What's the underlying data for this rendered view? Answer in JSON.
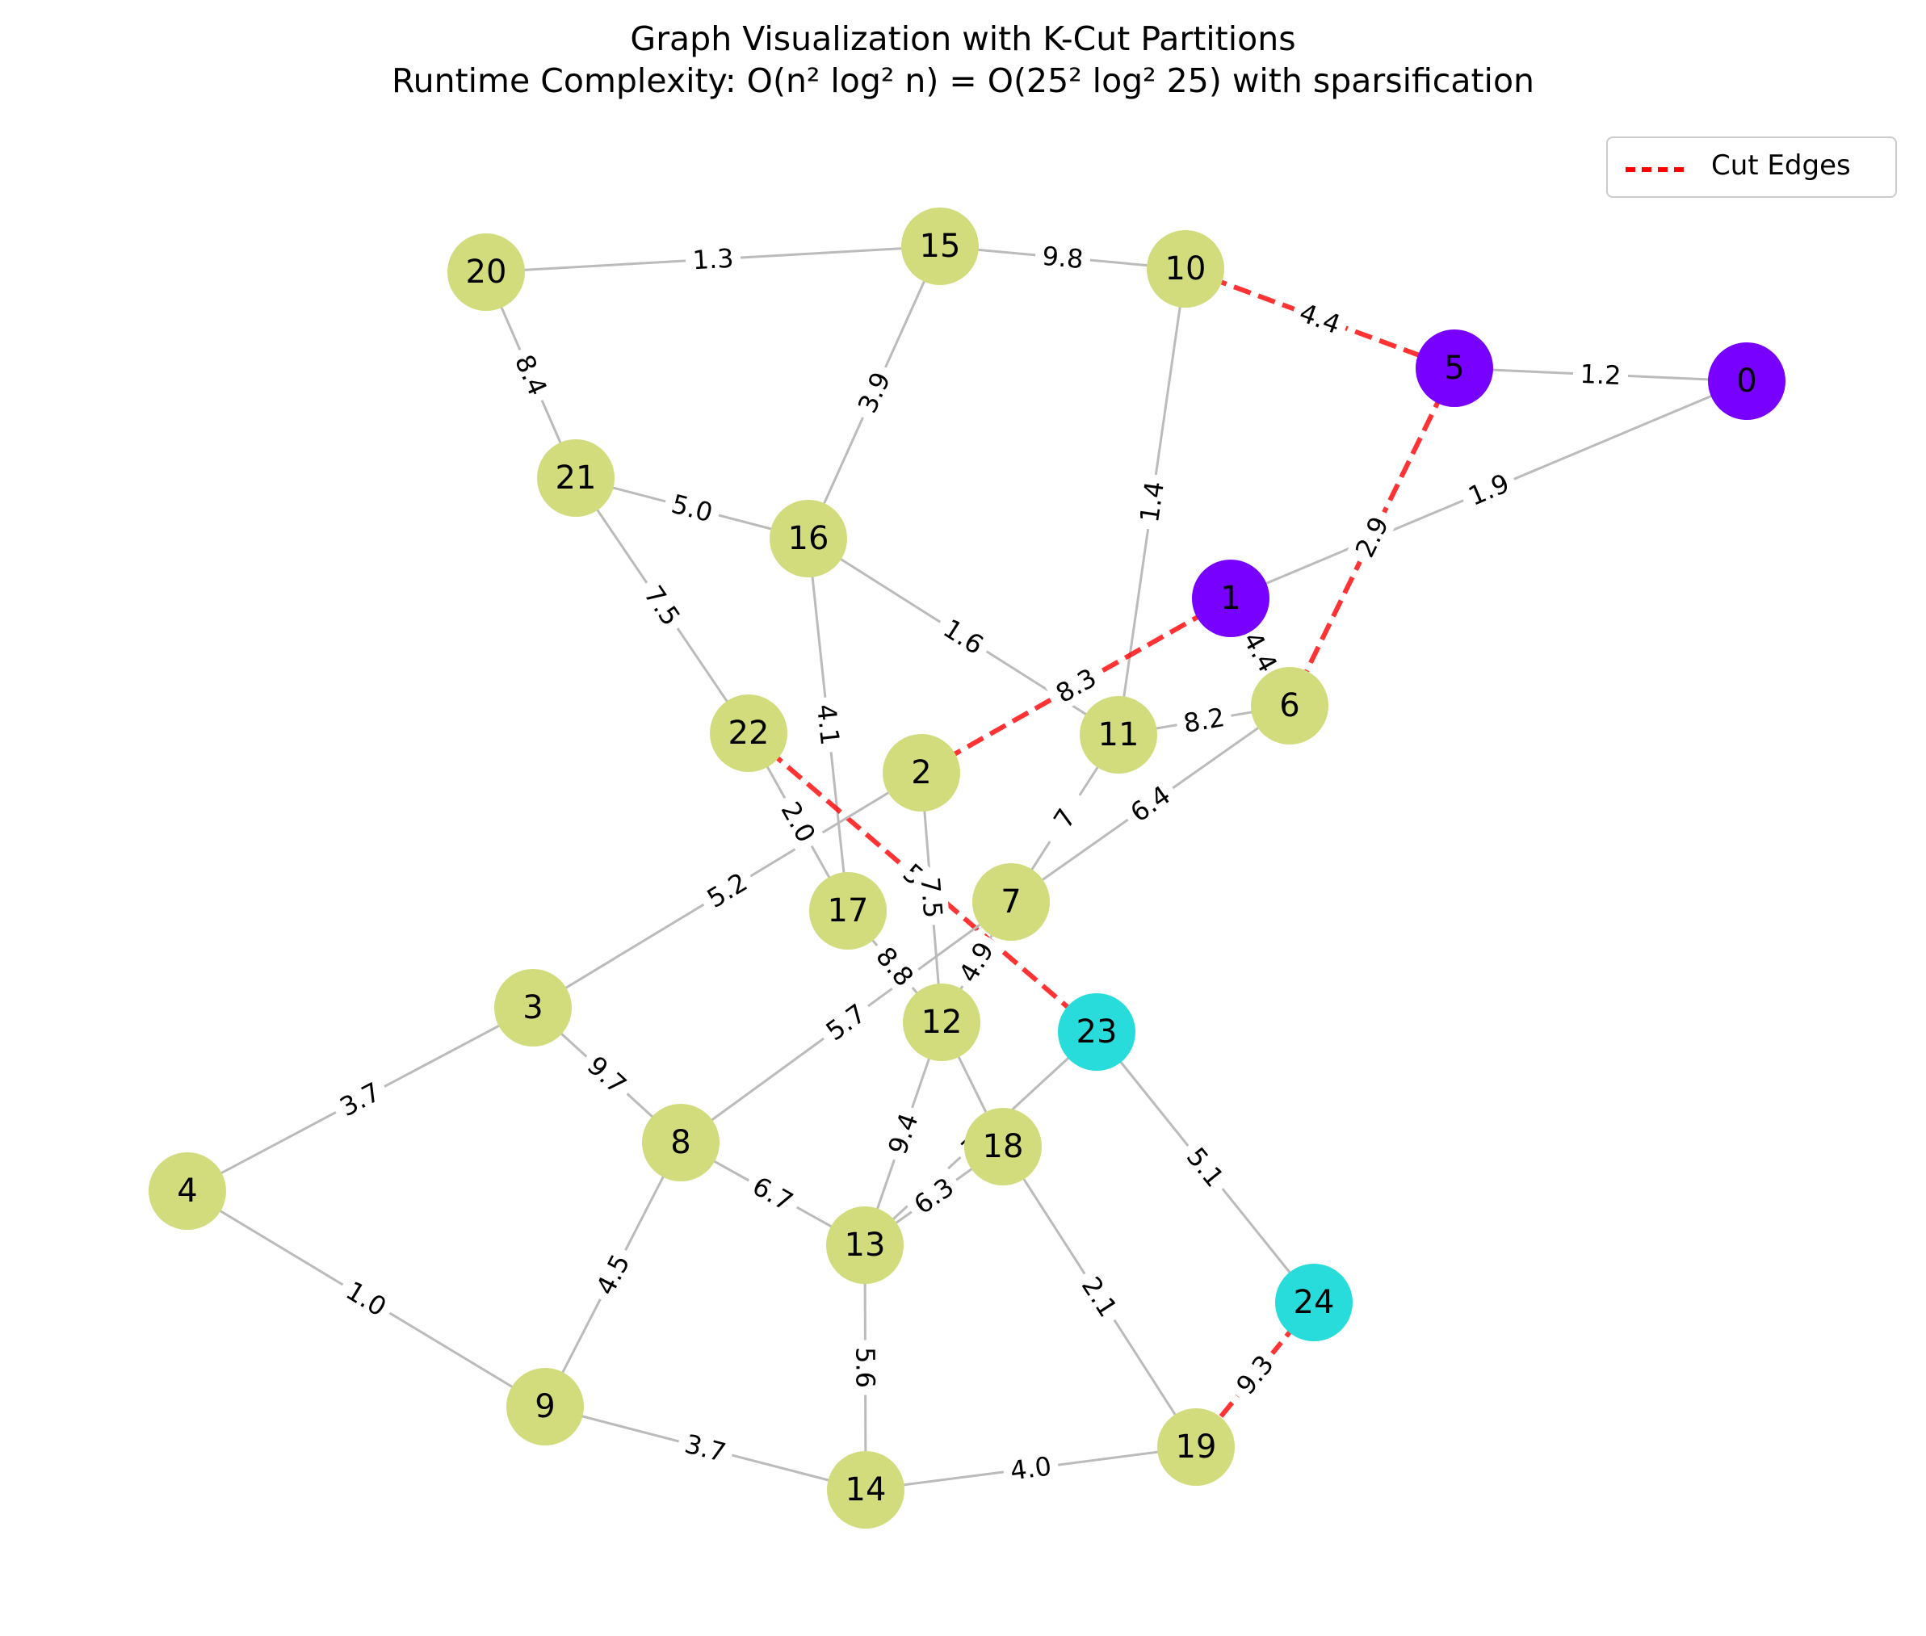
{
  "title": {
    "line1": "Graph Visualization with K-Cut Partitions",
    "line2": "Runtime Complexity: O(n² log² n) = O(25² log² 25) with sparsification"
  },
  "legend": {
    "label": "Cut Edges",
    "color": "#ff0000"
  },
  "colors": {
    "normal_edge": "#bbbbbb",
    "cut_edge": "#ff0000",
    "partition_purple": "#7700ff",
    "partition_green": "#d3dc7d",
    "partition_cyan": "#27dcdb"
  },
  "nodes": [
    {
      "id": "0",
      "partition": "purple"
    },
    {
      "id": "1",
      "partition": "purple"
    },
    {
      "id": "2",
      "partition": "green"
    },
    {
      "id": "3",
      "partition": "green"
    },
    {
      "id": "4",
      "partition": "green"
    },
    {
      "id": "5",
      "partition": "purple"
    },
    {
      "id": "6",
      "partition": "green"
    },
    {
      "id": "7",
      "partition": "green"
    },
    {
      "id": "8",
      "partition": "green"
    },
    {
      "id": "9",
      "partition": "green"
    },
    {
      "id": "10",
      "partition": "green"
    },
    {
      "id": "11",
      "partition": "green"
    },
    {
      "id": "12",
      "partition": "green"
    },
    {
      "id": "13",
      "partition": "green"
    },
    {
      "id": "14",
      "partition": "green"
    },
    {
      "id": "15",
      "partition": "green"
    },
    {
      "id": "16",
      "partition": "green"
    },
    {
      "id": "17",
      "partition": "green"
    },
    {
      "id": "18",
      "partition": "green"
    },
    {
      "id": "19",
      "partition": "green"
    },
    {
      "id": "20",
      "partition": "green"
    },
    {
      "id": "21",
      "partition": "green"
    },
    {
      "id": "22",
      "partition": "green"
    },
    {
      "id": "23",
      "partition": "cyan"
    },
    {
      "id": "24",
      "partition": "cyan"
    }
  ],
  "edges": [
    {
      "source": "20",
      "target": "15",
      "weight": "1.3",
      "cut": false
    },
    {
      "source": "15",
      "target": "10",
      "weight": "9.8",
      "cut": false
    },
    {
      "source": "10",
      "target": "5",
      "weight": "4.4",
      "cut": true
    },
    {
      "source": "5",
      "target": "0",
      "weight": "1.2",
      "cut": false
    },
    {
      "source": "0",
      "target": "1",
      "weight": "1.9",
      "cut": false
    },
    {
      "source": "5",
      "target": "6",
      "weight": "2.9",
      "cut": true
    },
    {
      "source": "20",
      "target": "21",
      "weight": "8.4",
      "cut": false
    },
    {
      "source": "15",
      "target": "16",
      "weight": "3.9",
      "cut": false
    },
    {
      "source": "21",
      "target": "16",
      "weight": "5.0",
      "cut": false
    },
    {
      "source": "10",
      "target": "11",
      "weight": "1.4",
      "cut": false
    },
    {
      "source": "21",
      "target": "22",
      "weight": "7.5",
      "cut": false
    },
    {
      "source": "16",
      "target": "11",
      "weight": "1.6",
      "cut": false
    },
    {
      "source": "16",
      "target": "17",
      "weight": "4.1",
      "cut": false
    },
    {
      "source": "1",
      "target": "2",
      "weight": "8.3",
      "cut": true
    },
    {
      "source": "1",
      "target": "6",
      "weight": "4.4",
      "cut": false
    },
    {
      "source": "11",
      "target": "6",
      "weight": "8.2",
      "cut": false
    },
    {
      "source": "6",
      "target": "7",
      "weight": "6.4",
      "cut": false
    },
    {
      "source": "11",
      "target": "7",
      "weight": "7",
      "cut": false
    },
    {
      "source": "22",
      "target": "17",
      "weight": "2.0",
      "cut": false
    },
    {
      "source": "22",
      "target": "23",
      "weight": "5.7",
      "cut": true
    },
    {
      "source": "2",
      "target": "12",
      "weight": "7.5",
      "cut": false
    },
    {
      "source": "2",
      "target": "3",
      "weight": "5.2",
      "cut": false
    },
    {
      "source": "17",
      "target": "12",
      "weight": "8.8",
      "cut": false
    },
    {
      "source": "7",
      "target": "8",
      "weight": "5.7",
      "cut": false
    },
    {
      "source": "7",
      "target": "12",
      "weight": "4.9",
      "cut": false
    },
    {
      "source": "3",
      "target": "4",
      "weight": "3.7",
      "cut": false
    },
    {
      "source": "3",
      "target": "8",
      "weight": "9.7",
      "cut": false
    },
    {
      "source": "12",
      "target": "13",
      "weight": "9.4",
      "cut": false
    },
    {
      "source": "12",
      "target": "18",
      "weight": "",
      "cut": false
    },
    {
      "source": "23",
      "target": "13",
      "weight": "7.4",
      "cut": false
    },
    {
      "source": "18",
      "target": "13",
      "weight": "6.3",
      "cut": false
    },
    {
      "source": "23",
      "target": "24",
      "weight": "5.1",
      "cut": false
    },
    {
      "source": "8",
      "target": "13",
      "weight": "6.7",
      "cut": false
    },
    {
      "source": "8",
      "target": "9",
      "weight": "4.5",
      "cut": false
    },
    {
      "source": "4",
      "target": "9",
      "weight": "1.0",
      "cut": false
    },
    {
      "source": "18",
      "target": "19",
      "weight": "2.1",
      "cut": false
    },
    {
      "source": "13",
      "target": "14",
      "weight": "5.6",
      "cut": false
    },
    {
      "source": "9",
      "target": "14",
      "weight": "3.7",
      "cut": false
    },
    {
      "source": "14",
      "target": "19",
      "weight": "4.0",
      "cut": false
    },
    {
      "source": "24",
      "target": "19",
      "weight": "9.3",
      "cut": true
    }
  ]
}
